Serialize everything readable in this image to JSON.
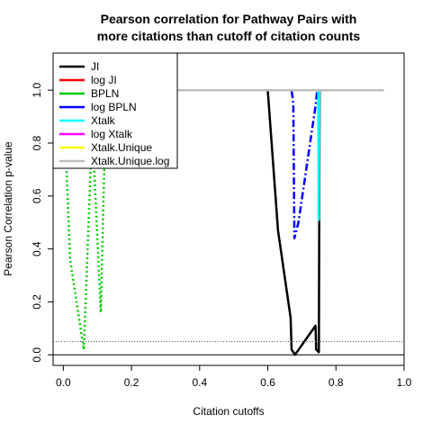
{
  "chart_data": {
    "type": "line",
    "title_lines": [
      "Pearson correlation for Pathway Pairs with",
      "more citations than cutoff of citation counts"
    ],
    "xlabel": "Citation cutoffs",
    "ylabel": "Pearson Correlation p-value",
    "xlim": [
      -0.03,
      1.0
    ],
    "ylim": [
      -0.04,
      1.14
    ],
    "x_ticks": [
      0.0,
      0.2,
      0.4,
      0.6,
      0.8,
      1.0
    ],
    "x_tick_labels": [
      "0.0",
      "0.2",
      "0.4",
      "0.6",
      "0.8",
      "1.0"
    ],
    "y_ticks": [
      0.0,
      0.2,
      0.4,
      0.6,
      0.8,
      1.0
    ],
    "y_tick_labels": [
      "0.0",
      "0.2",
      "0.4",
      "0.6",
      "0.8",
      "1.0"
    ],
    "hlines": [
      {
        "y": 0.0,
        "color": "#000000",
        "dash": "solid"
      },
      {
        "y": 0.05,
        "color": "#555555",
        "dash": "dotted"
      }
    ],
    "legend_position": "top-left",
    "series": [
      {
        "name": "JI",
        "color": "#000000",
        "dash": "solid",
        "x": [
          0.25,
          0.6,
          0.63,
          0.667,
          0.67,
          0.68,
          0.74,
          0.742,
          0.75,
          0.752,
          0.94
        ],
        "y": [
          1.0,
          1.0,
          0.47,
          0.14,
          0.02,
          0.0,
          0.11,
          0.02,
          0.01,
          1.0,
          1.0
        ]
      },
      {
        "name": "log JI",
        "color": "#ff0000",
        "dash": "solid",
        "x": [
          0.25,
          0.94
        ],
        "y": [
          1.0,
          1.0
        ]
      },
      {
        "name": "BPLN",
        "color": "#00cc00",
        "dash": "dotted",
        "x": [
          0.0,
          0.02,
          0.06,
          0.08,
          0.085,
          0.09,
          0.11,
          0.12,
          0.13,
          0.94
        ],
        "y": [
          1.0,
          0.36,
          0.02,
          0.7,
          0.8,
          0.72,
          0.16,
          0.7,
          1.0,
          1.0
        ]
      },
      {
        "name": "log BPLN",
        "color": "#0000ff",
        "dash": "dashdot",
        "x": [
          0.25,
          0.67,
          0.675,
          0.678,
          0.69,
          0.74,
          0.745,
          0.94
        ],
        "y": [
          1.0,
          1.0,
          0.95,
          0.44,
          0.5,
          0.94,
          1.0,
          1.0
        ]
      },
      {
        "name": "Xtalk",
        "color": "#00ffff",
        "dash": "solid",
        "x": [
          0.25,
          0.748,
          0.749,
          0.75,
          0.751,
          0.94
        ],
        "y": [
          1.0,
          1.0,
          0.51,
          0.51,
          1.0,
          1.0
        ]
      },
      {
        "name": "log Xtalk",
        "color": "#ff00ff",
        "dash": "dashed",
        "x": [
          0.25,
          0.94
        ],
        "y": [
          1.0,
          1.0
        ]
      },
      {
        "name": "Xtalk.Unique",
        "color": "#ffff00",
        "dash": "dashed",
        "x": [
          0.25,
          0.94
        ],
        "y": [
          1.0,
          1.0
        ]
      },
      {
        "name": "Xtalk.Unique.log",
        "color": "#bebebe",
        "dash": "solid",
        "x": [
          0.25,
          0.94
        ],
        "y": [
          1.0,
          1.0
        ]
      }
    ]
  }
}
